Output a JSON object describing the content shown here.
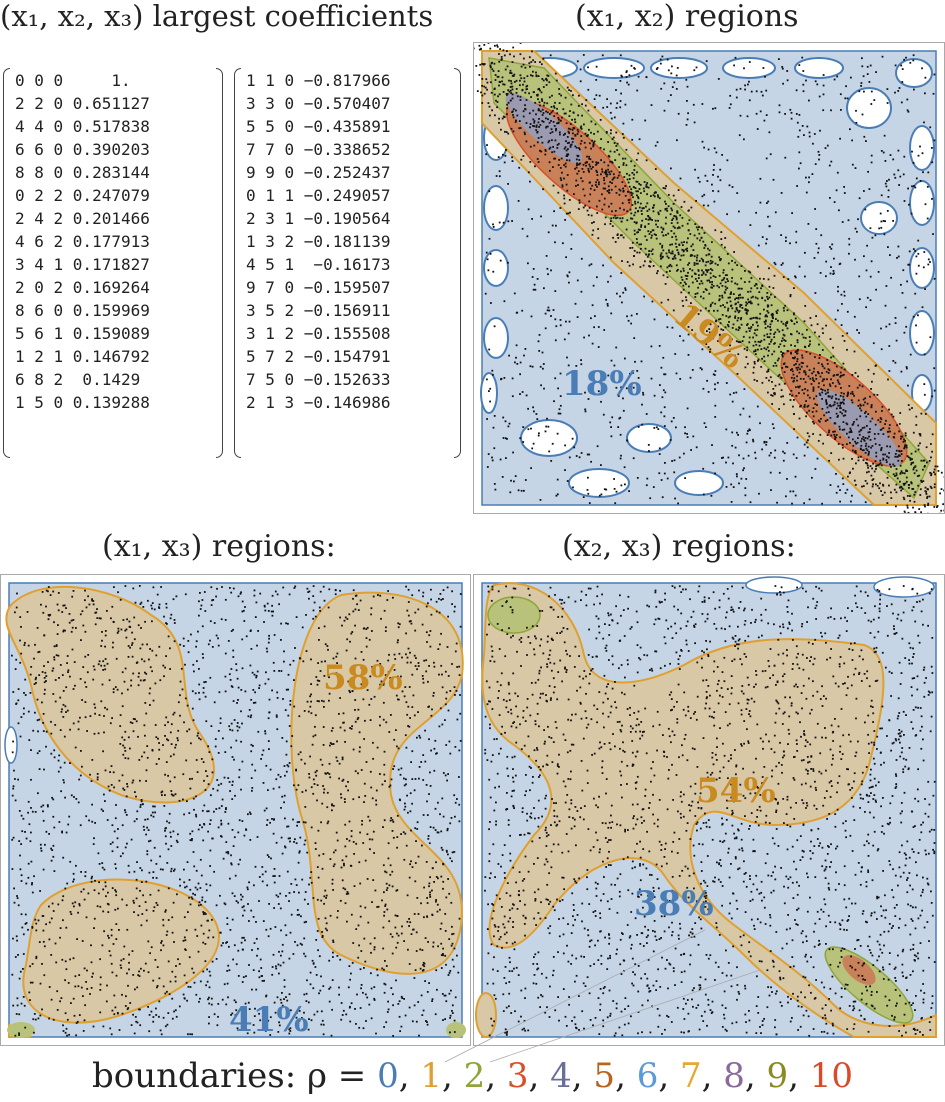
{
  "titles": {
    "coeffs": "(x₁, x₂, x₃) largest coefficients",
    "x1x2": "(x₁, x₂) regions",
    "x1x3": "(x₁, x₃) regions:",
    "x2x3": "(x₂, x₃) regions:"
  },
  "coefficients": {
    "left": [
      "0 0 0     1.",
      "2 2 0 0.651127",
      "4 4 0 0.517838",
      "6 6 0 0.390203",
      "8 8 0 0.283144",
      "0 2 2 0.247079",
      "2 4 2 0.201466",
      "4 6 2 0.177913",
      "3 4 1 0.171827",
      "2 0 2 0.169264",
      "8 6 0 0.159969",
      "5 6 1 0.159089",
      "1 2 1 0.146792",
      "6 8 2  0.1429",
      "1 5 0 0.139288"
    ],
    "right": [
      "1 1 0 −0.817966",
      "3 3 0 −0.570407",
      "5 5 0 −0.435891",
      "7 7 0 −0.338652",
      "9 9 0 −0.252437",
      "0 1 1 −0.249057",
      "2 3 1 −0.190564",
      "1 3 2 −0.181139",
      "4 5 1  −0.16173",
      "9 7 0 −0.159507",
      "3 5 2 −0.156911",
      "3 1 2 −0.155508",
      "5 7 2 −0.154791",
      "7 5 0 −0.152633",
      "2 1 3 −0.146986"
    ]
  },
  "percentages": {
    "x1x2_low": "18%",
    "x1x2_band": "19%",
    "x1x3_high": "58%",
    "x1x3_low": "41%",
    "x2x3_high": "54%",
    "x2x3_low": "38%"
  },
  "legend": {
    "prefix": "boundaries: ρ = ",
    "items": [
      {
        "label": "0",
        "color": "#4a7db5"
      },
      {
        "label": "1",
        "color": "#e0a030"
      },
      {
        "label": "2",
        "color": "#8ea53a"
      },
      {
        "label": "3",
        "color": "#d8502a"
      },
      {
        "label": "4",
        "color": "#6a6f9a"
      },
      {
        "label": "5",
        "color": "#b8641f"
      },
      {
        "label": "6",
        "color": "#5a9ad8"
      },
      {
        "label": "7",
        "color": "#e6a830"
      },
      {
        "label": "8",
        "color": "#8a6a9a"
      },
      {
        "label": "9",
        "color": "#8a8a20"
      },
      {
        "label": "10",
        "color": "#d84a2a"
      }
    ]
  },
  "colors": {
    "region0": "#c5d5e6",
    "region1": "#d9c8a6",
    "region2": "#b8c27a",
    "region3": "#c9815a",
    "region4": "#9a9ab0",
    "edge0": "#4a7db5",
    "edge1": "#e0a030",
    "pct_blue": "#4a7db5",
    "pct_orange": "#c98a20"
  }
}
